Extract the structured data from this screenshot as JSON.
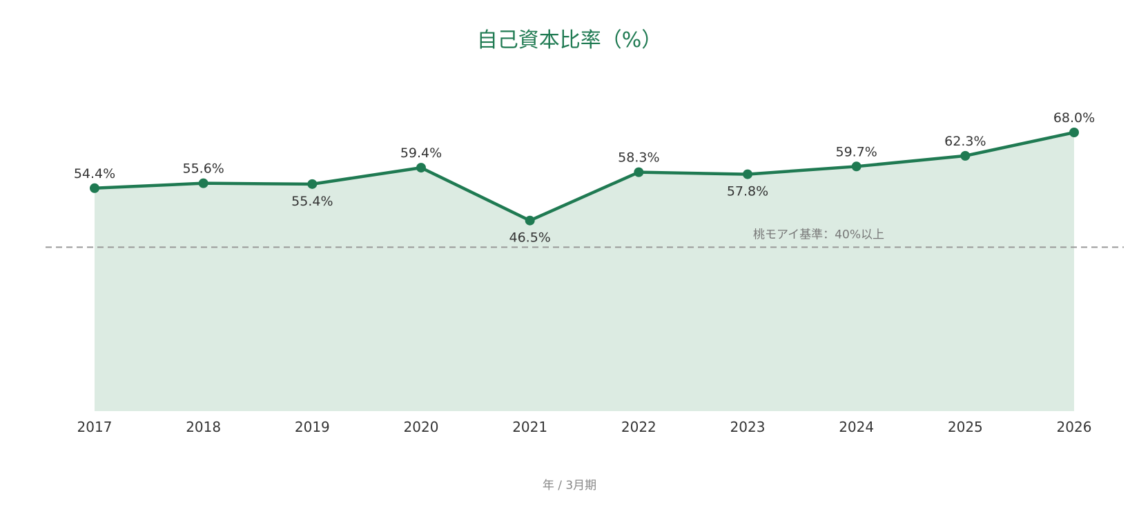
{
  "chart_data": {
    "type": "area",
    "title": "自己資本比率（%）",
    "xlabel": "年 / 3月期",
    "ylabel": "",
    "categories": [
      "2017",
      "2018",
      "2019",
      "2020",
      "2021",
      "2022",
      "2023",
      "2024",
      "2025",
      "2026"
    ],
    "values": [
      54.4,
      55.6,
      55.4,
      59.4,
      46.5,
      58.3,
      57.8,
      59.7,
      62.3,
      68.0
    ],
    "data_labels": [
      "54.4%",
      "55.6%",
      "55.4%",
      "59.4%",
      "46.5%",
      "58.3%",
      "57.8%",
      "59.7%",
      "62.3%",
      "68.0%"
    ],
    "ylim": [
      0,
      68.0
    ],
    "grid": false,
    "reference_line": {
      "value": 40,
      "label": "桃モアイ基準：40%以上"
    },
    "colors": {
      "line": "#1f7a52",
      "area": "#dcebe2",
      "reference": "#999999",
      "title": "#1f7a52"
    }
  }
}
